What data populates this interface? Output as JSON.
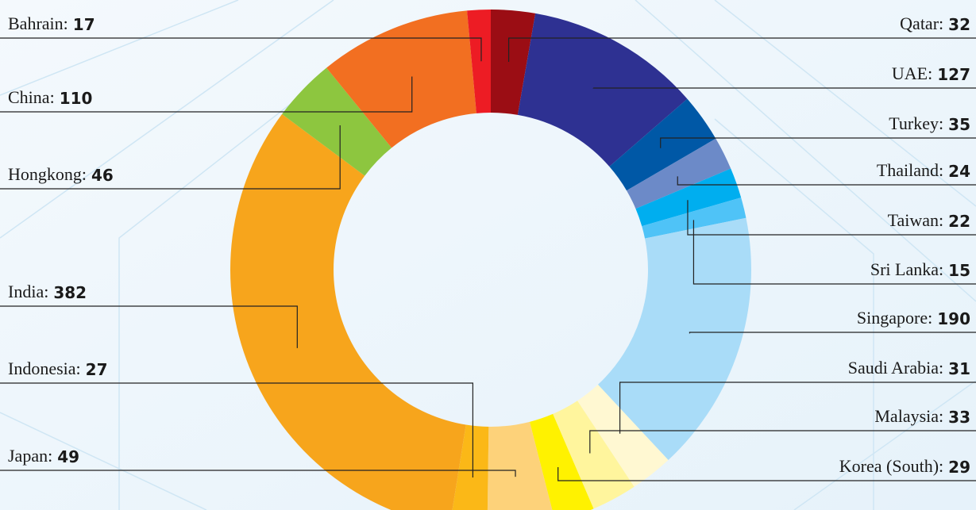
{
  "chart_data": {
    "type": "donut",
    "label_separator": ":",
    "categories": [
      "Qatar",
      "UAE",
      "Turkey",
      "Thailand",
      "Taiwan",
      "Sri Lanka",
      "Singapore",
      "Saudi Arabia",
      "Malaysia",
      "Korea (South)",
      "Japan",
      "Indonesia",
      "India",
      "Hongkong",
      "China",
      "Bahrain"
    ],
    "values": [
      32,
      127,
      35,
      24,
      22,
      15,
      190,
      31,
      33,
      29,
      49,
      27,
      382,
      46,
      110,
      17
    ],
    "colors": [
      "#9b0d14",
      "#2e3192",
      "#0058a6",
      "#6c8ac8",
      "#00aeef",
      "#4fc3f7",
      "#a9dcf8",
      "#fff8d2",
      "#fff59d",
      "#fff200",
      "#fdd27a",
      "#fbb817",
      "#f7a51c",
      "#8dc63f",
      "#f26f21",
      "#ed1c24"
    ]
  }
}
